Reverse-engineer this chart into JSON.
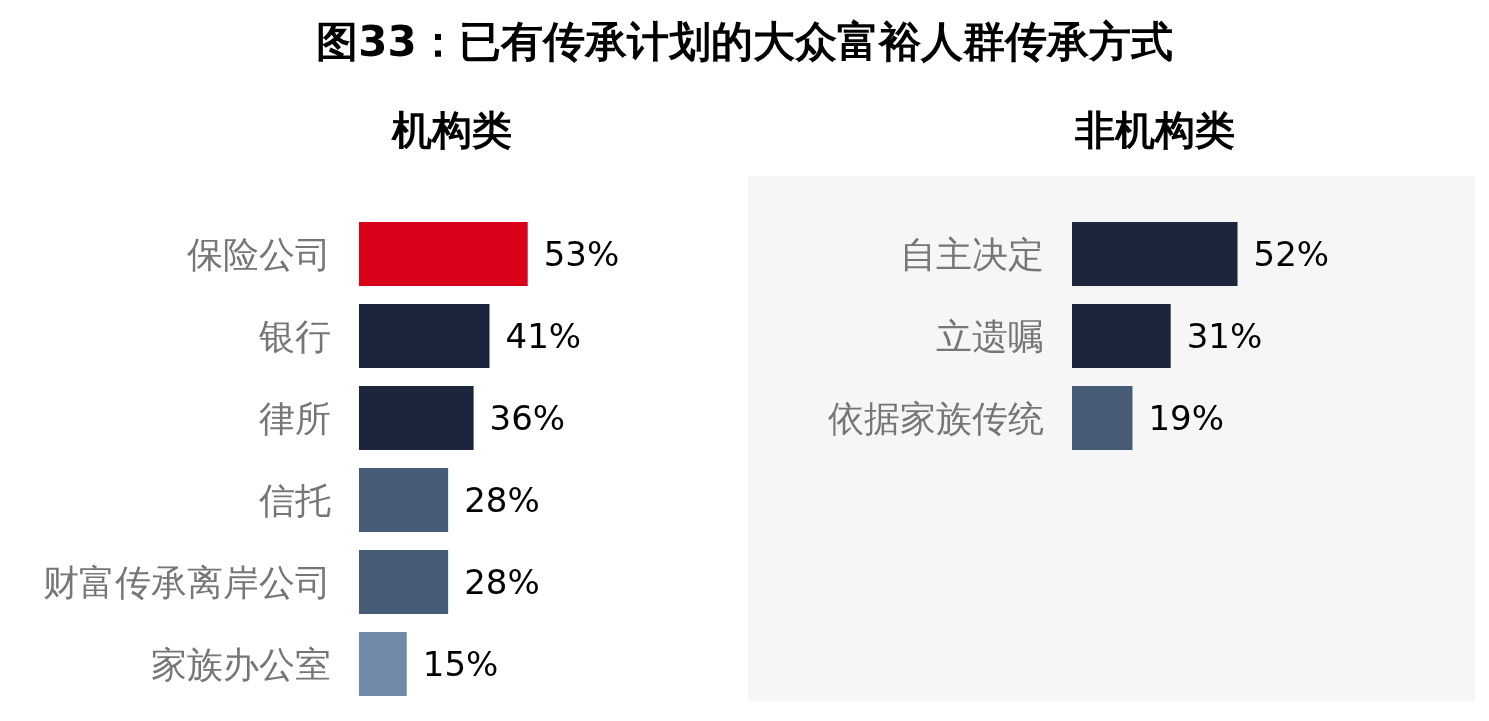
{
  "chart_data": [
    {
      "type": "bar",
      "orientation": "horizontal",
      "title": "图33：已有传承计划的大众富裕人群传承方式",
      "subtitle": "机构类",
      "categories": [
        "保险公司",
        "银行",
        "律所",
        "信托",
        "财富传承离岸公司",
        "家族办公室"
      ],
      "values": [
        53,
        41,
        36,
        28,
        28,
        15
      ],
      "colors": [
        "#d9001b",
        "#1b253c",
        "#1b253c",
        "#465b76",
        "#465b76",
        "#718aa7"
      ],
      "value_labels": [
        "53%",
        "41%",
        "36%",
        "28%",
        "28%",
        "15%"
      ],
      "grid": false,
      "tick_labels": "y"
    },
    {
      "type": "bar",
      "orientation": "horizontal",
      "title": "非机构类",
      "categories": [
        "自主决定",
        "立遗嘱",
        "依据家族传统"
      ],
      "values": [
        52,
        31,
        19
      ],
      "colors": [
        "#1b253c",
        "#1b253c",
        "#465b76"
      ],
      "value_labels": [
        "52%",
        "31%",
        "19%"
      ],
      "grid": false,
      "tick_labels": "y"
    }
  ]
}
